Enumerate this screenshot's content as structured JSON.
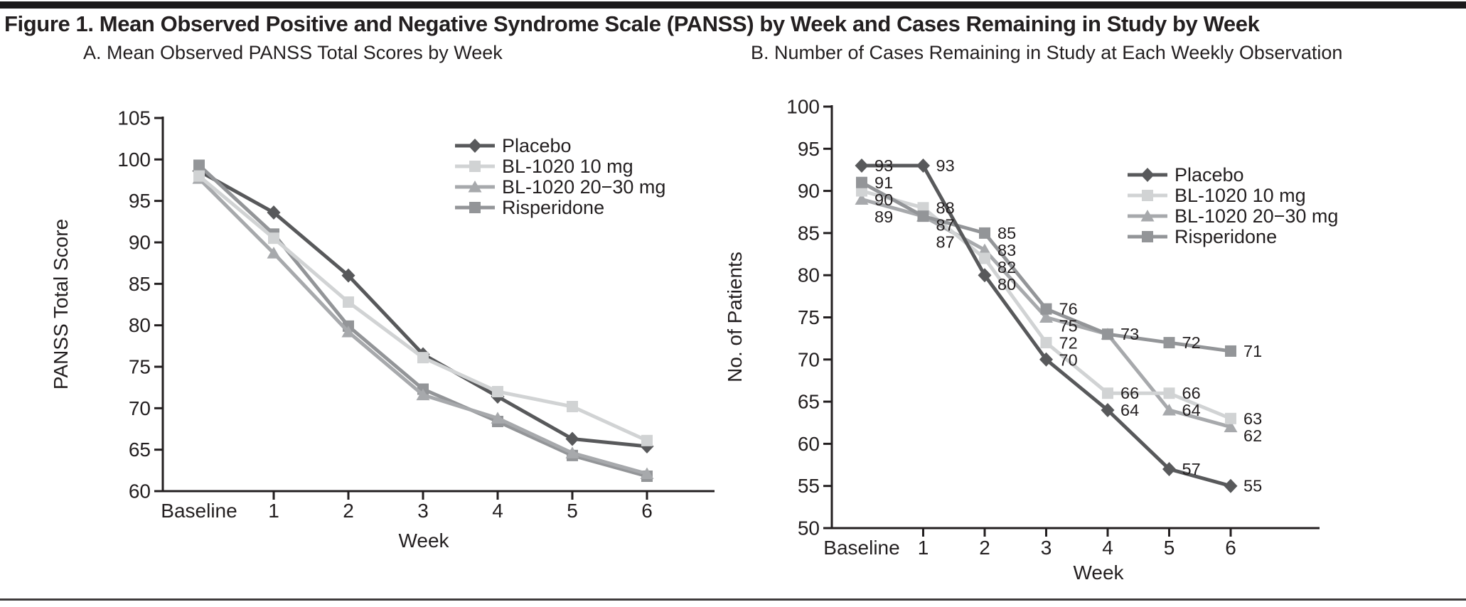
{
  "figure_title": "Figure 1. Mean Observed Positive and Negative Syndrome Scale (PANSS) by Week and Cases Remaining in Study by Week",
  "colors": {
    "text": "#231f20",
    "axis": "#231f20",
    "placebo": "#58595b",
    "bl1020_10mg": "#d1d3d4",
    "bl1020_2030mg": "#a7a9ac",
    "risperidone": "#939598"
  },
  "chart_data": [
    {
      "id": "panel-a",
      "type": "line",
      "title": "A. Mean Observed PANSS Total Scores by Week",
      "xlabel": "Week",
      "ylabel": "PANSS Total Score",
      "x_categories": [
        "Baseline",
        "1",
        "2",
        "3",
        "4",
        "5",
        "6"
      ],
      "ylim": [
        60,
        105
      ],
      "ytick_step": 5,
      "grid": false,
      "legend_position": "inside-top-right",
      "series": [
        {
          "name": "Placebo",
          "marker": "diamond",
          "color": "placebo",
          "values": [
            98.6,
            93.6,
            86.0,
            76.5,
            71.4,
            66.3,
            65.4
          ]
        },
        {
          "name": "BL-1020 10 mg",
          "marker": "square",
          "color": "bl1020_10mg",
          "values": [
            98.0,
            90.5,
            82.8,
            76.1,
            72.0,
            70.2,
            66.1
          ]
        },
        {
          "name": "BL-1020 20−30 mg",
          "marker": "triangle",
          "color": "bl1020_2030mg",
          "values": [
            97.7,
            88.7,
            79.2,
            71.6,
            68.8,
            64.6,
            62.1
          ]
        },
        {
          "name": "Risperidone",
          "marker": "square",
          "color": "risperidone",
          "values": [
            99.3,
            91.0,
            79.9,
            72.3,
            68.4,
            64.3,
            61.8
          ]
        }
      ]
    },
    {
      "id": "panel-b",
      "type": "line",
      "title": "B. Number of Cases Remaining in Study at Each Weekly Observation",
      "xlabel": "Week",
      "ylabel": "No. of Patients",
      "x_categories": [
        "Baseline",
        "1",
        "2",
        "3",
        "4",
        "5",
        "6"
      ],
      "ylim": [
        50,
        100
      ],
      "ytick_step": 5,
      "grid": false,
      "legend_position": "inside-right",
      "series": [
        {
          "name": "Placebo",
          "marker": "diamond",
          "color": "placebo",
          "values": [
            93,
            93,
            80,
            70,
            64,
            57,
            55
          ],
          "point_labels": [
            93,
            93,
            80,
            70,
            64,
            57,
            55
          ]
        },
        {
          "name": "BL-1020 10 mg",
          "marker": "square",
          "color": "bl1020_10mg",
          "values": [
            90,
            88,
            82,
            72,
            66,
            66,
            63
          ],
          "point_labels": [
            90,
            88,
            82,
            72,
            66,
            66,
            63
          ]
        },
        {
          "name": "BL-1020 20−30 mg",
          "marker": "triangle",
          "color": "bl1020_2030mg",
          "values": [
            89,
            87,
            83,
            75,
            73,
            64,
            62
          ],
          "point_labels": [
            89,
            87,
            83,
            75,
            null,
            64,
            62
          ]
        },
        {
          "name": "Risperidone",
          "marker": "square",
          "color": "risperidone",
          "values": [
            91,
            87,
            85,
            76,
            73,
            72,
            71
          ],
          "point_labels": [
            91,
            87,
            85,
            76,
            73,
            72,
            71
          ]
        }
      ]
    }
  ]
}
